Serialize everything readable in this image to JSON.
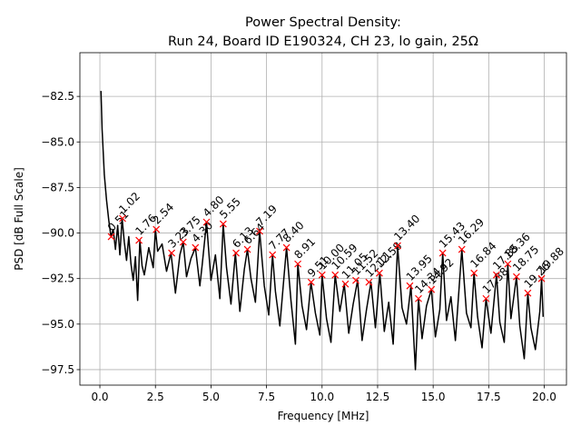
{
  "chart_data": {
    "type": "line",
    "title": [
      "Power Spectral Density:",
      "Run 24, Board ID E190324, CH 23, lo gain, 25Ω"
    ],
    "xlabel": "Frequency [MHz]",
    "ylabel": "PSD [dB Full Scale]",
    "xlim": [
      -0.9,
      21.0
    ],
    "ylim": [
      -98.35,
      -80.1
    ],
    "xticks": [
      {
        "value": 0,
        "label": "0.0"
      },
      2.5,
      {
        "value": 5,
        "label": "5.0"
      },
      7.5,
      {
        "value": 10,
        "label": "10.0"
      },
      12.5,
      {
        "value": 15,
        "label": "15.0"
      },
      17.5,
      {
        "value": 20,
        "label": "20.0"
      }
    ],
    "yticks": [
      {
        "value": -82.5,
        "label": "−82.5"
      },
      {
        "value": -85,
        "label": "−85.0"
      },
      {
        "value": -87.5,
        "label": "−87.5"
      },
      {
        "value": -90,
        "label": "−90.0"
      },
      {
        "value": -92.5,
        "label": "−92.5"
      },
      {
        "value": -95,
        "label": "−95.0"
      },
      {
        "value": -97.5,
        "label": "−97.5"
      }
    ],
    "grid": true,
    "series": [
      {
        "color": "#000000",
        "x": [
          0.05,
          0.1,
          0.2,
          0.3,
          0.4,
          0.5,
          0.6,
          0.7,
          0.8,
          0.9,
          1.0,
          1.1,
          1.2,
          1.3,
          1.4,
          1.5,
          1.6,
          1.7,
          1.8,
          1.9,
          2.0,
          2.2,
          2.4,
          2.5,
          2.6,
          2.8,
          3.0,
          3.2,
          3.4,
          3.6,
          3.75,
          3.9,
          4.1,
          4.3,
          4.5,
          4.6,
          4.8,
          5.0,
          5.2,
          5.4,
          5.55,
          5.7,
          5.9,
          6.1,
          6.3,
          6.5,
          6.64,
          6.8,
          7.0,
          7.19,
          7.4,
          7.6,
          7.77,
          7.9,
          8.1,
          8.3,
          8.4,
          8.6,
          8.8,
          8.91,
          9.1,
          9.3,
          9.5,
          9.7,
          9.9,
          10.0,
          10.2,
          10.4,
          10.59,
          10.8,
          11.0,
          11.2,
          11.4,
          11.6,
          11.8,
          12.0,
          12.2,
          12.4,
          12.6,
          12.8,
          13.0,
          13.2,
          13.4,
          13.6,
          13.8,
          14.0,
          14.2,
          14.34,
          14.5,
          14.7,
          14.92,
          15.1,
          15.3,
          15.43,
          15.6,
          15.8,
          16.0,
          16.29,
          16.5,
          16.7,
          16.84,
          17.0,
          17.2,
          17.38,
          17.6,
          17.85,
          18.0,
          18.2,
          18.36,
          18.5,
          18.75,
          18.9,
          19.1,
          19.26,
          19.4,
          19.6,
          19.8,
          19.88,
          19.95
        ],
        "values": [
          -82.2,
          -84.3,
          -86.8,
          -88.2,
          -89.3,
          -90.2,
          -89.8,
          -90.9,
          -89.6,
          -91.2,
          -89.2,
          -90.5,
          -91.5,
          -90.2,
          -91.7,
          -92.6,
          -91.3,
          -93.7,
          -90.4,
          -91.8,
          -92.3,
          -90.8,
          -91.9,
          -89.8,
          -91.0,
          -90.6,
          -92.1,
          -91.1,
          -93.3,
          -91.2,
          -90.5,
          -92.4,
          -91.4,
          -90.8,
          -92.9,
          -91.8,
          -89.4,
          -92.6,
          -91.2,
          -93.6,
          -89.5,
          -91.9,
          -93.9,
          -91.1,
          -94.3,
          -92.0,
          -90.9,
          -92.5,
          -93.8,
          -89.9,
          -92.9,
          -94.5,
          -91.2,
          -93.2,
          -95.1,
          -92.2,
          -90.8,
          -93.7,
          -96.1,
          -91.7,
          -94.0,
          -95.3,
          -92.7,
          -94.4,
          -95.6,
          -92.3,
          -94.7,
          -96.0,
          -92.3,
          -94.3,
          -92.8,
          -95.5,
          -93.9,
          -92.6,
          -95.9,
          -94.2,
          -92.7,
          -95.2,
          -92.2,
          -95.4,
          -93.8,
          -96.1,
          -90.7,
          -94.1,
          -95.0,
          -92.9,
          -97.5,
          -93.6,
          -95.8,
          -94.0,
          -93.1,
          -95.7,
          -94.2,
          -91.1,
          -94.8,
          -93.5,
          -95.9,
          -90.9,
          -94.4,
          -95.2,
          -92.2,
          -94.6,
          -96.3,
          -93.6,
          -95.5,
          -92.3,
          -94.9,
          -96.0,
          -91.7,
          -94.7,
          -92.4,
          -95.1,
          -96.9,
          -93.3,
          -95.2,
          -96.4,
          -94.3,
          -92.5,
          -94.6
        ]
      }
    ],
    "peaks": {
      "color": "#ff0000",
      "x": [
        0.51,
        1.02,
        1.76,
        2.54,
        3.23,
        3.75,
        4.3,
        4.8,
        5.55,
        6.13,
        6.64,
        7.19,
        7.77,
        8.4,
        8.91,
        9.51,
        10.0,
        10.59,
        11.05,
        11.52,
        12.11,
        12.58,
        13.4,
        13.95,
        14.34,
        14.92,
        15.43,
        16.29,
        16.84,
        17.38,
        17.85,
        18.36,
        18.75,
        19.26,
        19.88
      ],
      "values": [
        -90.2,
        -89.2,
        -90.4,
        -89.8,
        -91.1,
        -90.5,
        -90.8,
        -89.4,
        -89.5,
        -91.1,
        -90.9,
        -89.9,
        -91.2,
        -90.8,
        -91.7,
        -92.7,
        -92.3,
        -92.3,
        -92.8,
        -92.6,
        -92.7,
        -92.2,
        -90.7,
        -92.9,
        -93.6,
        -93.1,
        -91.1,
        -90.9,
        -92.2,
        -93.6,
        -92.3,
        -91.7,
        -92.4,
        -93.3,
        -92.5
      ],
      "labels": [
        "0.51",
        "1.02",
        "1.76",
        "2.54",
        "3.23",
        "3.75",
        "4.30",
        "4.80",
        "5.55",
        "6.13",
        "6.64",
        "7.19",
        "7.77",
        "8.40",
        "8.91",
        "9.51",
        "10.00",
        "10.59",
        "11.05",
        "11.52",
        "12.11",
        "12.58",
        "13.40",
        "13.95",
        "14.34",
        "14.92",
        "15.43",
        "16.29",
        "16.84",
        "17.38",
        "17.85",
        "18.36",
        "18.75",
        "19.26",
        "19.88"
      ]
    }
  }
}
